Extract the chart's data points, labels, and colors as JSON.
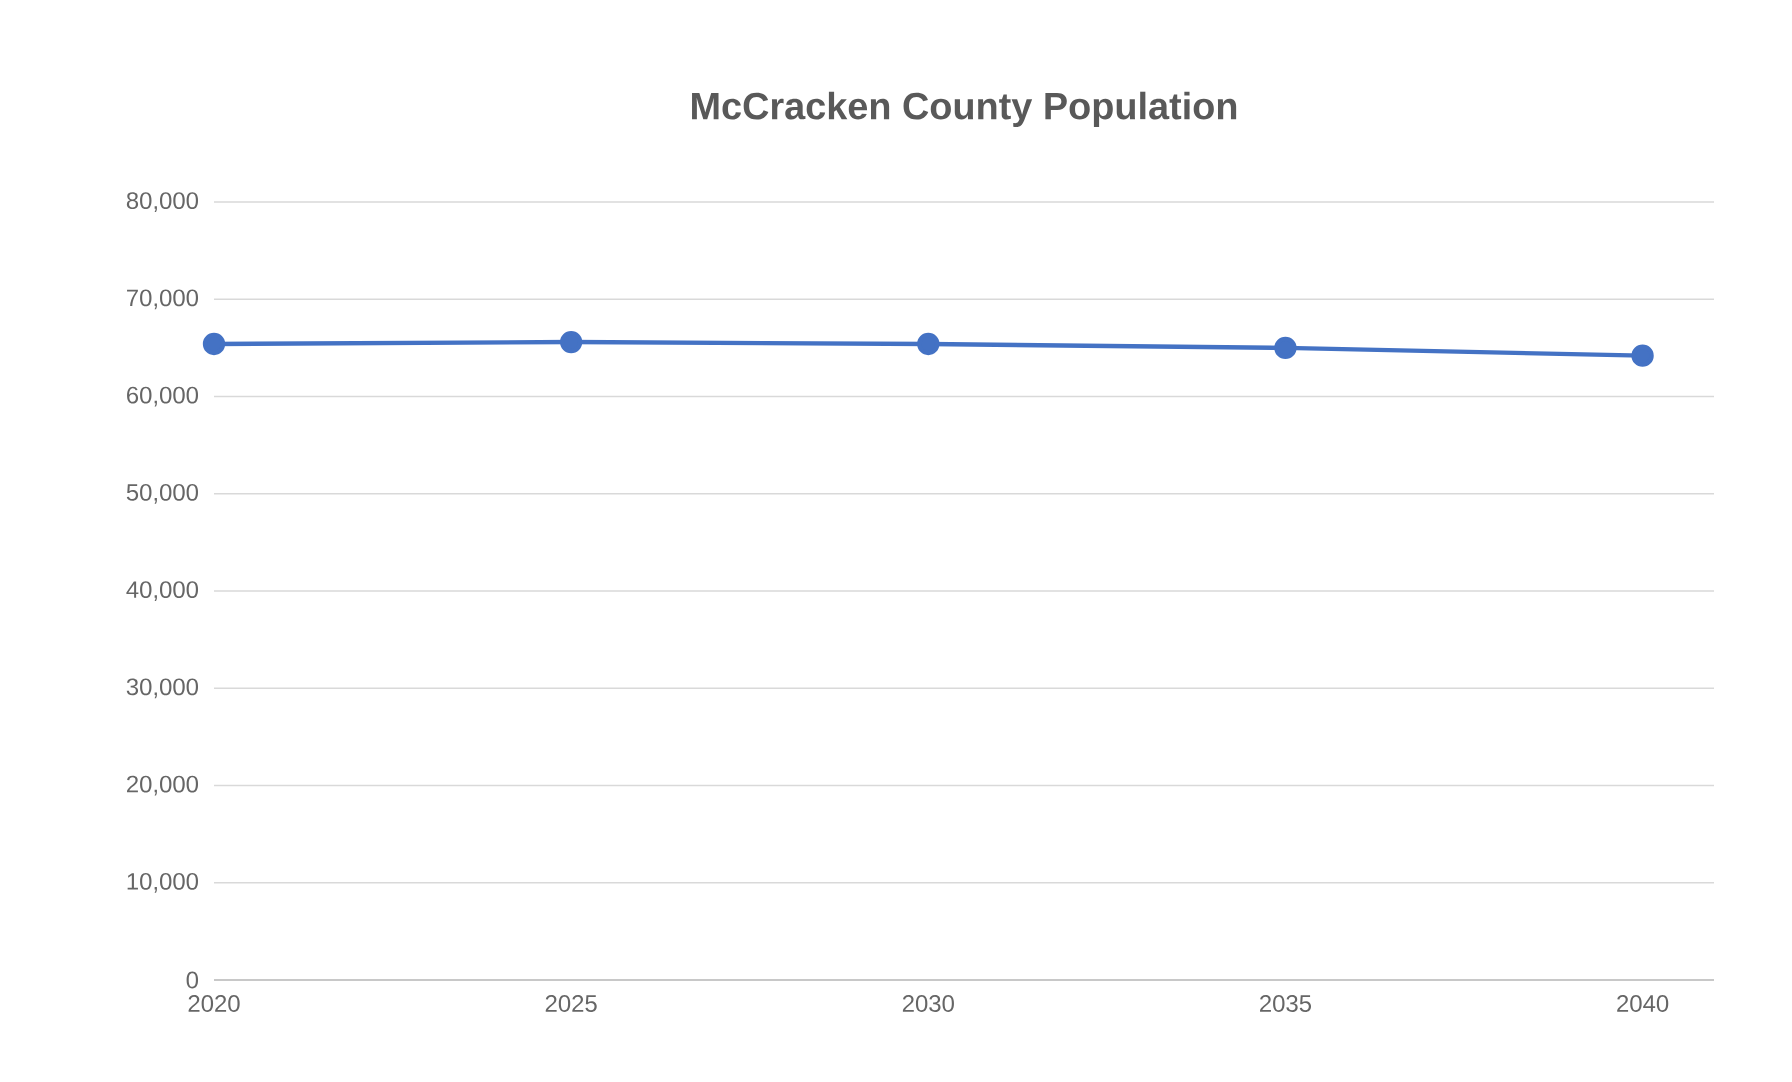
{
  "chart_data": {
    "type": "line",
    "title": "McCracken  County Population",
    "x": [
      2020,
      2025,
      2030,
      2035,
      2040
    ],
    "series": [
      {
        "color": "#4472c4",
        "values": [
          65400,
          65600,
          65400,
          65000,
          64200
        ]
      }
    ],
    "xlim": [
      2020,
      2041
    ],
    "xticks": [
      2020,
      2025,
      2030,
      2035,
      2040
    ],
    "ylim": [
      0,
      80000
    ],
    "yticks": [
      0,
      {
        "value": 10000,
        "label": "10,000"
      },
      {
        "value": 20000,
        "label": "20,000"
      },
      {
        "value": 30000,
        "label": "30,000"
      },
      {
        "value": 40000,
        "label": "40,000"
      },
      {
        "value": 50000,
        "label": "50,000"
      },
      {
        "value": 60000,
        "label": "60,000"
      },
      {
        "value": 70000,
        "label": "70,000"
      },
      {
        "value": 80000,
        "label": "80,000"
      }
    ],
    "grid": "y",
    "marker": "circle",
    "line_style": "solid"
  }
}
